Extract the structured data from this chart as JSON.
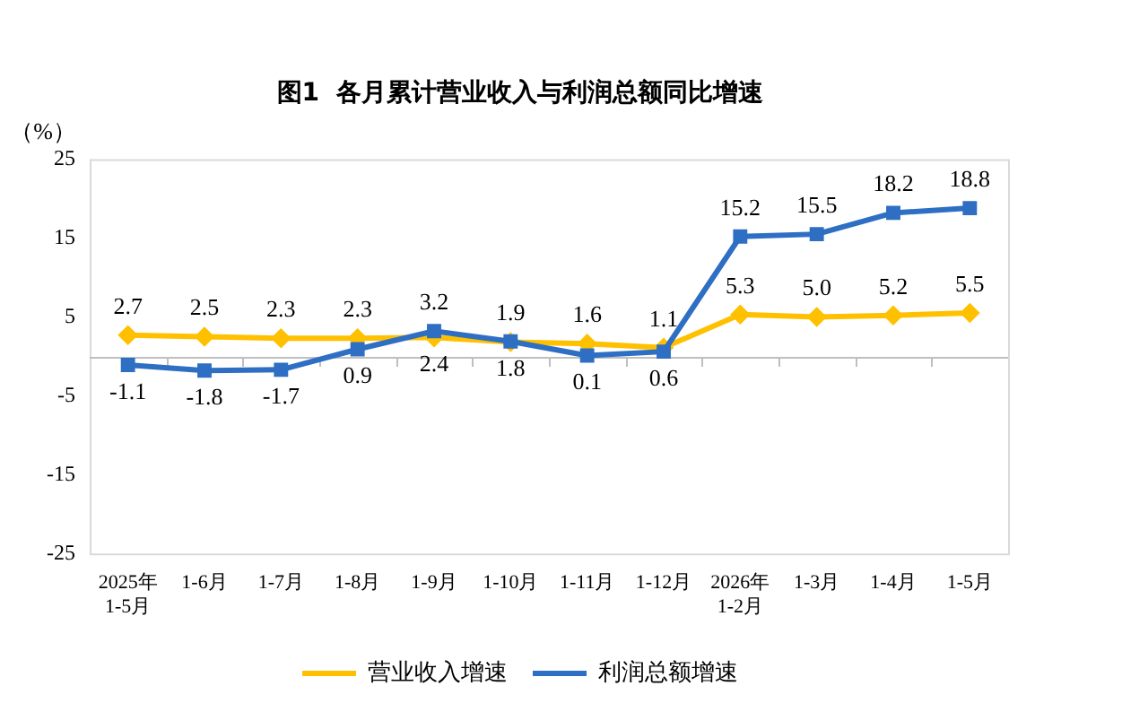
{
  "chart_data": {
    "type": "line",
    "title": "图1  各月累计营业收入与利润总额同比增速",
    "ylabel": "（%）",
    "categories": [
      "2025年\n1-5月",
      "1-6月",
      "1-7月",
      "1-8月",
      "1-9月",
      "1-10月",
      "1-11月",
      "1-12月",
      "2026年\n1-2月",
      "1-3月",
      "1-4月",
      "1-5月"
    ],
    "series": [
      {
        "name": "营业收入增速",
        "color": "#ffc000",
        "marker": "diamond",
        "values": [
          2.7,
          2.5,
          2.3,
          2.3,
          2.4,
          1.8,
          1.6,
          1.1,
          5.3,
          5.0,
          5.2,
          5.5
        ],
        "value_labels": [
          "2.7",
          "2.5",
          "2.3",
          "2.3",
          "2.4",
          "1.8",
          "1.6",
          "1.1",
          "5.3",
          "5.0",
          "5.2",
          "5.5"
        ]
      },
      {
        "name": "利润总额增速",
        "color": "#2e6fc4",
        "marker": "square",
        "values": [
          -1.1,
          -1.8,
          -1.7,
          0.9,
          3.2,
          1.9,
          0.1,
          0.6,
          15.2,
          15.5,
          18.2,
          18.8
        ],
        "value_labels": [
          "-1.1",
          "-1.8",
          "-1.7",
          "0.9",
          "3.2",
          "1.9",
          "0.1",
          "0.6",
          "15.2",
          "15.5",
          "18.2",
          "18.8"
        ]
      }
    ],
    "ylim": [
      -25,
      25
    ],
    "yticks": [
      -25,
      -15,
      -5,
      5,
      15,
      25
    ],
    "grid": false,
    "legend": "bottom"
  }
}
